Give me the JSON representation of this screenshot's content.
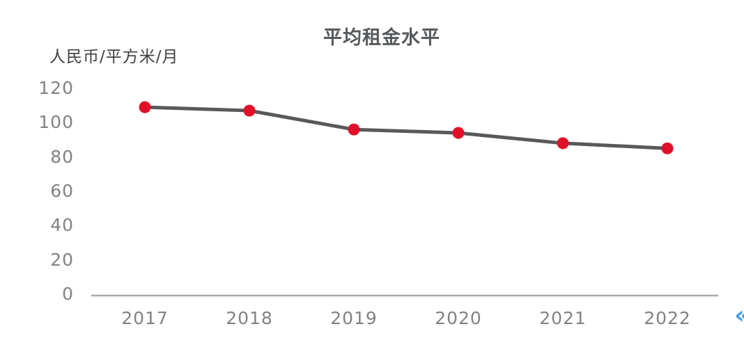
{
  "chart_data": {
    "type": "line",
    "title": "平均租金水平",
    "y_axis_unit_label": "人民币/平方米/月",
    "categories": [
      "2017",
      "2018",
      "2019",
      "2020",
      "2021",
      "2022"
    ],
    "values": [
      109,
      107,
      96,
      94,
      88,
      85
    ],
    "y_ticks": [
      0,
      20,
      40,
      60,
      80,
      100,
      120
    ],
    "ylim": [
      0,
      120
    ],
    "grid": false,
    "legend": "none",
    "colors": {
      "line": "#58595b",
      "marker": "#e01028",
      "axis_line": "#a7a9ac",
      "tick_text": "#808285",
      "title_text": "#565a5c",
      "unit_text": "#3d3f42",
      "nav_arrow": "#4a9ee0"
    }
  },
  "nav": {
    "prev_arrow_glyph": "«"
  }
}
